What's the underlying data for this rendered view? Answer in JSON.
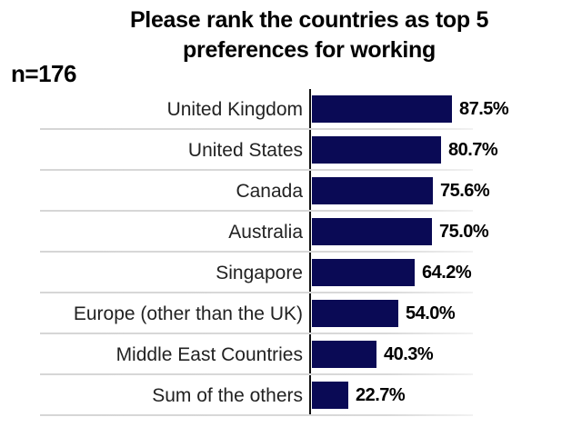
{
  "header": {
    "title_line1": "Please rank the countries as top 5",
    "title_line2": "preferences for working",
    "sample_size": "n=176"
  },
  "chart_data": {
    "type": "bar",
    "orientation": "horizontal",
    "title": "Please rank the countries as top 5 preferences for working",
    "annotation": "n=176",
    "categories": [
      "United Kingdom",
      "United States",
      "Canada",
      "Australia",
      "Singapore",
      "Europe (other than the UK)",
      "Middle East Countries",
      "Sum of the others"
    ],
    "values": [
      87.5,
      80.7,
      75.6,
      75.0,
      64.2,
      54.0,
      40.3,
      22.7
    ],
    "value_labels": [
      "87.5%",
      "80.7%",
      "75.6%",
      "75.0%",
      "64.2%",
      "54.0%",
      "40.3%",
      "22.7%"
    ],
    "xlabel": "",
    "ylabel": "",
    "xlim": [
      0,
      100
    ],
    "legend": "none",
    "grid": "horizontal category separators",
    "colors": {
      "bar": "#0a0a55",
      "axis_line": "#111111",
      "separator": "#d9d9d9",
      "title_text": "#000000",
      "category_text": "#222222",
      "value_text": "#000000",
      "background": "#ffffff"
    }
  }
}
